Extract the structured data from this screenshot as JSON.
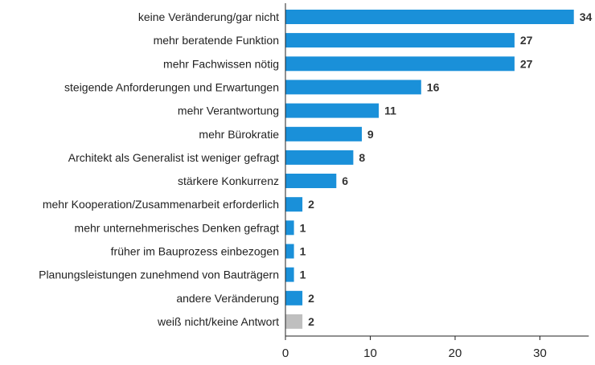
{
  "chart_data": {
    "type": "bar",
    "orientation": "horizontal",
    "categories": [
      "keine Veränderung/gar nicht",
      "mehr beratende Funktion",
      "mehr Fachwissen nötig",
      "steigende Anforderungen und Erwartungen",
      "mehr Verantwortung",
      "mehr Bürokratie",
      "Architekt als Generalist ist weniger gefragt",
      "stärkere Konkurrenz",
      "mehr Kooperation/Zusammenarbeit erforderlich",
      "mehr unternehmerisches Denken gefragt",
      "früher im Bauprozess einbezogen",
      "Planungsleistungen zunehmend von Bauträgern",
      "andere Veränderung",
      "weiß nicht/keine Antwort"
    ],
    "values": [
      34,
      27,
      27,
      16,
      11,
      9,
      8,
      6,
      2,
      1,
      1,
      1,
      2,
      2
    ],
    "value_labels": [
      "34",
      "27",
      "27",
      "16",
      "11",
      "9",
      "8",
      "6",
      "2",
      "1",
      "1",
      "1",
      "2",
      "2"
    ],
    "bar_colors": [
      "#1a90d9",
      "#1a90d9",
      "#1a90d9",
      "#1a90d9",
      "#1a90d9",
      "#1a90d9",
      "#1a90d9",
      "#1a90d9",
      "#1a90d9",
      "#1a90d9",
      "#1a90d9",
      "#1a90d9",
      "#1a90d9",
      "#bfbfbf"
    ],
    "title": "",
    "xlabel": "",
    "ylabel": "",
    "xlim": [
      0,
      35
    ],
    "xticks": [
      0,
      10,
      20,
      30
    ],
    "xtick_labels": [
      "0",
      "10",
      "20",
      "30"
    ],
    "grid": false,
    "legend": "none"
  }
}
